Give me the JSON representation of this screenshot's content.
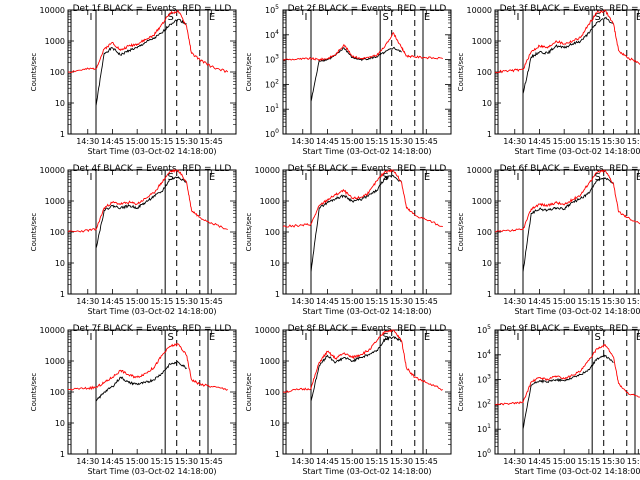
{
  "figure": {
    "xlabel": "Start Time (03-Oct-02 14:18:00)",
    "ylabel": "Counts/sec",
    "x_tick_labels": [
      "14:30",
      "14:45",
      "15:00",
      "15:15",
      "15:30",
      "15:45"
    ],
    "linear_y_ticks": [
      "1",
      "10",
      "100",
      "1000",
      "10000"
    ],
    "exp_y_ticks": [
      [
        "10",
        "0"
      ],
      [
        "10",
        "1"
      ],
      [
        "10",
        "2"
      ],
      [
        "10",
        "3"
      ],
      [
        "10",
        "4"
      ],
      [
        "10",
        "5"
      ]
    ],
    "marker_labels": [
      "I",
      "S",
      "E"
    ],
    "colors": {
      "events": "#000000",
      "lld": "#ff0000",
      "axes": "#000000",
      "background": "#ffffff"
    }
  },
  "chart_data": [
    {
      "type": "line",
      "title": "Det 1f  BLACK = Events, RED = LLD",
      "y_scale": "log",
      "ylim": [
        1,
        10000
      ],
      "y_tick_style": "linear",
      "x": [
        "14:18",
        "14:28",
        "14:35",
        "14:40",
        "14:45",
        "14:50",
        "14:55",
        "15:00",
        "15:05",
        "15:10",
        "15:15",
        "15:20",
        "15:25",
        "15:30",
        "15:33",
        "15:38",
        "15:45",
        "15:55"
      ],
      "series": [
        {
          "name": "Events",
          "values": [
            null,
            null,
            8,
            400,
            600,
            350,
            500,
            600,
            900,
            1200,
            1800,
            3500,
            5000,
            3500,
            null,
            null,
            null,
            null
          ]
        },
        {
          "name": "LLD",
          "values": [
            100,
            120,
            130,
            550,
            900,
            500,
            700,
            800,
            1100,
            1500,
            3500,
            8000,
            9000,
            3000,
            400,
            250,
            150,
            100
          ]
        }
      ]
    },
    {
      "type": "line",
      "title": "Det 2f  BLACK = Events, RED = LLD",
      "y_scale": "log",
      "ylim": [
        1,
        100000
      ],
      "y_tick_style": "exponent",
      "x": [
        "14:18",
        "14:28",
        "14:35",
        "14:40",
        "14:45",
        "14:50",
        "14:55",
        "15:00",
        "15:05",
        "15:10",
        "15:15",
        "15:20",
        "15:25",
        "15:30",
        "15:33",
        "15:38",
        "15:45",
        "15:55"
      ],
      "series": [
        {
          "name": "Events",
          "values": [
            null,
            null,
            20,
            900,
            1000,
            1500,
            3000,
            1200,
            1000,
            1100,
            1300,
            2000,
            3000,
            2000,
            null,
            null,
            null,
            null
          ]
        },
        {
          "name": "LLD",
          "values": [
            1000,
            1050,
            1100,
            1000,
            1100,
            1600,
            4000,
            1400,
            1100,
            1200,
            1500,
            3500,
            12000,
            3000,
            1400,
            1300,
            1200,
            1100
          ]
        }
      ]
    },
    {
      "type": "line",
      "title": "Det 3f  BLACK = Events, RED = LLD",
      "y_scale": "log",
      "ylim": [
        1,
        10000
      ],
      "y_tick_style": "linear",
      "x": [
        "14:18",
        "14:28",
        "14:35",
        "14:40",
        "14:45",
        "14:50",
        "14:55",
        "15:00",
        "15:05",
        "15:10",
        "15:15",
        "15:20",
        "15:25",
        "15:30",
        "15:33",
        "15:38",
        "15:45",
        "15:55"
      ],
      "series": [
        {
          "name": "Events",
          "values": [
            null,
            null,
            20,
            300,
            450,
            400,
            700,
            600,
            800,
            1000,
            1800,
            4000,
            5500,
            3500,
            null,
            null,
            null,
            null
          ]
        },
        {
          "name": "LLD",
          "values": [
            100,
            110,
            120,
            450,
            700,
            600,
            1000,
            800,
            1000,
            1300,
            3500,
            8500,
            9500,
            3500,
            500,
            300,
            200,
            120
          ]
        }
      ]
    },
    {
      "type": "line",
      "title": "Det 4f  BLACK = Events, RED = LLD",
      "y_scale": "log",
      "ylim": [
        1,
        10000
      ],
      "y_tick_style": "linear",
      "x": [
        "14:18",
        "14:28",
        "14:35",
        "14:40",
        "14:45",
        "14:50",
        "14:55",
        "15:00",
        "15:05",
        "15:10",
        "15:15",
        "15:20",
        "15:25",
        "15:30",
        "15:33",
        "15:38",
        "15:45",
        "15:55"
      ],
      "series": [
        {
          "name": "Events",
          "values": [
            null,
            null,
            30,
            500,
            700,
            600,
            700,
            600,
            900,
            1400,
            2000,
            5000,
            6000,
            4000,
            null,
            null,
            null,
            null
          ]
        },
        {
          "name": "LLD",
          "values": [
            100,
            110,
            120,
            600,
            900,
            800,
            900,
            800,
            1200,
            1800,
            4000,
            9000,
            9800,
            4000,
            500,
            300,
            200,
            120
          ]
        }
      ]
    },
    {
      "type": "line",
      "title": "Det 5f  BLACK = Events, RED = LLD",
      "y_scale": "log",
      "ylim": [
        1,
        10000
      ],
      "y_tick_style": "linear",
      "x": [
        "14:18",
        "14:28",
        "14:35",
        "14:40",
        "14:45",
        "14:50",
        "14:55",
        "15:00",
        "15:05",
        "15:10",
        "15:15",
        "15:20",
        "15:25",
        "15:30",
        "15:33",
        "15:38",
        "15:45",
        "15:55"
      ],
      "series": [
        {
          "name": "Events",
          "values": [
            null,
            null,
            5,
            600,
            900,
            1200,
            1500,
            1000,
            1100,
            1500,
            2200,
            5500,
            6500,
            4000,
            null,
            null,
            null,
            null
          ]
        },
        {
          "name": "LLD",
          "values": [
            150,
            160,
            180,
            700,
            1100,
            1600,
            2200,
            1200,
            1300,
            1800,
            4500,
            9000,
            9800,
            4000,
            600,
            350,
            250,
            150
          ]
        }
      ]
    },
    {
      "type": "line",
      "title": "Det 6f  BLACK = Events, RED = LLD",
      "y_scale": "log",
      "ylim": [
        1,
        10000
      ],
      "y_tick_style": "linear",
      "x": [
        "14:18",
        "14:28",
        "14:35",
        "14:40",
        "14:45",
        "14:50",
        "14:55",
        "15:00",
        "15:05",
        "15:10",
        "15:15",
        "15:20",
        "15:25",
        "15:30",
        "15:33",
        "15:38",
        "15:45",
        "15:55"
      ],
      "series": [
        {
          "name": "Events",
          "values": [
            null,
            null,
            5,
            400,
            550,
            500,
            600,
            550,
            900,
            1200,
            1800,
            4500,
            5500,
            3500,
            null,
            null,
            null,
            null
          ]
        },
        {
          "name": "LLD",
          "values": [
            100,
            110,
            120,
            550,
            800,
            700,
            900,
            750,
            1100,
            1600,
            3800,
            8500,
            9500,
            3500,
            450,
            300,
            200,
            120
          ]
        }
      ]
    },
    {
      "type": "line",
      "title": "Det 7f  BLACK = Events, RED = LLD",
      "y_scale": "log",
      "ylim": [
        1,
        10000
      ],
      "y_tick_style": "linear",
      "x": [
        "14:18",
        "14:28",
        "14:35",
        "14:40",
        "14:45",
        "14:50",
        "14:55",
        "15:00",
        "15:05",
        "15:10",
        "15:15",
        "15:20",
        "15:25",
        "15:30",
        "15:33",
        "15:38",
        "15:45",
        "15:55"
      ],
      "series": [
        {
          "name": "Events",
          "values": [
            null,
            null,
            50,
            100,
            150,
            300,
            200,
            180,
            200,
            250,
            400,
            800,
            900,
            600,
            null,
            null,
            null,
            null
          ]
        },
        {
          "name": "LLD",
          "values": [
            120,
            130,
            140,
            200,
            300,
            500,
            350,
            300,
            400,
            600,
            1500,
            3000,
            3500,
            1500,
            250,
            180,
            150,
            120
          ]
        }
      ]
    },
    {
      "type": "line",
      "title": "Det 8f  BLACK = Events, RED = LLD",
      "y_scale": "log",
      "ylim": [
        1,
        10000
      ],
      "y_tick_style": "linear",
      "x": [
        "14:18",
        "14:28",
        "14:35",
        "14:40",
        "14:45",
        "14:50",
        "14:55",
        "15:00",
        "15:05",
        "15:10",
        "15:15",
        "15:20",
        "15:25",
        "15:30",
        "15:33",
        "15:38",
        "15:45",
        "15:55"
      ],
      "series": [
        {
          "name": "Events",
          "values": [
            null,
            null,
            50,
            700,
            1500,
            900,
            1300,
            1000,
            1300,
            1600,
            2200,
            5000,
            6000,
            4500,
            null,
            null,
            null,
            null
          ]
        },
        {
          "name": "LLD",
          "values": [
            100,
            120,
            130,
            900,
            2000,
            1200,
            1800,
            1300,
            1600,
            2200,
            4500,
            9000,
            9800,
            4500,
            600,
            300,
            200,
            120
          ]
        }
      ]
    },
    {
      "type": "line",
      "title": "Det 9f  BLACK = Events, RED = LLD",
      "y_scale": "log",
      "ylim": [
        1,
        100000
      ],
      "y_tick_style": "exponent",
      "x": [
        "14:18",
        "14:28",
        "14:35",
        "14:40",
        "14:45",
        "14:50",
        "14:55",
        "15:00",
        "15:05",
        "15:10",
        "15:15",
        "15:20",
        "15:25",
        "15:30",
        "15:33",
        "15:38",
        "15:45",
        "15:55"
      ],
      "series": [
        {
          "name": "Events",
          "values": [
            null,
            null,
            10,
            600,
            900,
            800,
            1000,
            900,
            1200,
            1600,
            2500,
            7000,
            9000,
            5000,
            null,
            null,
            null,
            null
          ]
        },
        {
          "name": "LLD",
          "values": [
            100,
            110,
            120,
            800,
            1200,
            1000,
            1400,
            1100,
            1500,
            2200,
            6000,
            18000,
            25000,
            8000,
            700,
            300,
            200,
            120
          ]
        }
      ]
    }
  ]
}
